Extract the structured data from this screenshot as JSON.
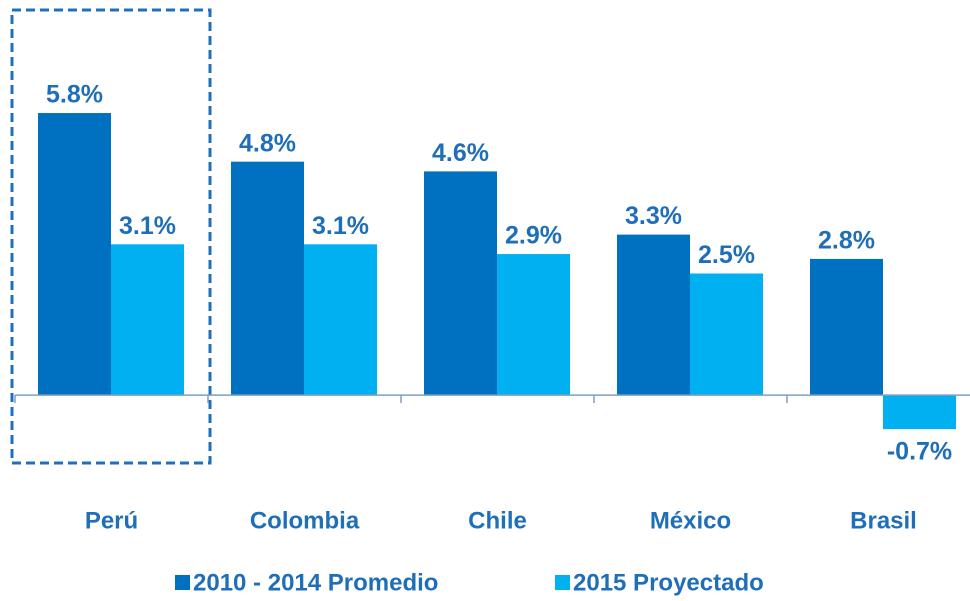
{
  "chart_data": {
    "type": "bar",
    "categories": [
      "Perú",
      "Colombia",
      "Chile",
      "México",
      "Brasil"
    ],
    "series": [
      {
        "name": "2010 - 2014 Promedio",
        "color": "#0070c0",
        "values": [
          5.8,
          4.8,
          4.6,
          3.3,
          2.8
        ],
        "value_labels": [
          "5.8%",
          "4.8%",
          "4.6%",
          "3.3%",
          "2.8%"
        ]
      },
      {
        "name": "2015 Proyectado",
        "color": "#00b0f0",
        "values": [
          3.1,
          3.1,
          2.9,
          2.5,
          -0.7
        ],
        "value_labels": [
          "3.1%",
          "3.1%",
          "2.9%",
          "2.5%",
          "-0.7%"
        ]
      }
    ],
    "ylim": [
      -1.5,
      6.5
    ]
  }
}
